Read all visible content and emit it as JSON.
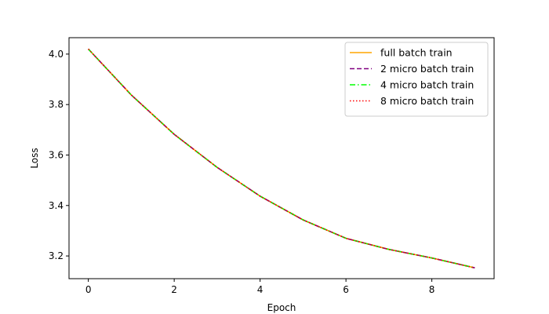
{
  "chart_data": {
    "type": "line",
    "title": "",
    "xlabel": "Epoch",
    "ylabel": "Loss",
    "xlim": [
      -0.45,
      9.45
    ],
    "ylim": [
      3.11,
      4.065
    ],
    "xticks": [
      0,
      2,
      4,
      6,
      8
    ],
    "yticks": [
      3.2,
      3.4,
      3.6,
      3.8,
      4.0
    ],
    "xtick_labels": [
      "0",
      "2",
      "4",
      "6",
      "8"
    ],
    "ytick_labels": [
      "3.2",
      "3.4",
      "3.6",
      "3.8",
      "4.0"
    ],
    "grid": false,
    "legend_position": "top-right",
    "x": [
      0,
      1,
      2,
      3,
      4,
      5,
      6,
      7,
      8,
      9
    ],
    "series": [
      {
        "name": "full batch train",
        "color": "#ffa500",
        "style": "solid",
        "values": [
          4.02,
          3.838,
          3.682,
          3.551,
          3.437,
          3.343,
          3.27,
          3.226,
          3.192,
          3.153
        ]
      },
      {
        "name": "2 micro batch train",
        "color": "#800080",
        "style": "dashed",
        "values": [
          4.02,
          3.838,
          3.682,
          3.551,
          3.437,
          3.343,
          3.27,
          3.226,
          3.192,
          3.153
        ]
      },
      {
        "name": "4 micro batch train",
        "color": "#00ff00",
        "style": "dashdot",
        "values": [
          4.02,
          3.838,
          3.682,
          3.551,
          3.437,
          3.343,
          3.27,
          3.226,
          3.192,
          3.153
        ]
      },
      {
        "name": "8 micro batch train",
        "color": "#ff0000",
        "style": "dotted",
        "values": [
          4.02,
          3.838,
          3.682,
          3.551,
          3.437,
          3.343,
          3.27,
          3.226,
          3.192,
          3.153
        ]
      }
    ]
  }
}
